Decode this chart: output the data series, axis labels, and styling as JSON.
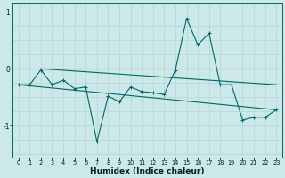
{
  "xlabel": "Humidex (Indice chaleur)",
  "background_color": "#cce8e8",
  "plot_bg_color": "#cce8e8",
  "line_color": "#006868",
  "xlim": [
    -0.5,
    23.5
  ],
  "ylim": [
    -1.55,
    1.15
  ],
  "yticks": [
    -1,
    0,
    1
  ],
  "xticks": [
    0,
    1,
    2,
    3,
    4,
    5,
    6,
    7,
    8,
    9,
    10,
    11,
    12,
    13,
    14,
    15,
    16,
    17,
    18,
    19,
    20,
    21,
    22,
    23
  ],
  "vgrid_color": "#b0d8d8",
  "hgrid_color": "#b0d8d8",
  "zero_line_color": "#d08080",
  "series1_x": [
    0,
    1,
    2,
    3,
    4,
    5,
    6,
    7,
    8,
    9,
    10,
    11,
    12,
    13,
    14,
    15,
    16,
    17,
    18,
    19,
    20,
    21,
    22,
    23
  ],
  "series1_y": [
    -0.28,
    -0.28,
    -0.02,
    -0.28,
    -0.2,
    -0.35,
    -0.32,
    -1.28,
    -0.48,
    -0.58,
    -0.32,
    -0.4,
    -0.42,
    -0.45,
    -0.02,
    0.88,
    0.42,
    0.62,
    -0.28,
    -0.28,
    -0.9,
    -0.85,
    -0.85,
    -0.72
  ],
  "trend1_x": [
    2,
    23
  ],
  "trend1_y": [
    0.0,
    -0.28
  ],
  "trend2_x": [
    0,
    23
  ],
  "trend2_y": [
    -0.28,
    -0.72
  ]
}
